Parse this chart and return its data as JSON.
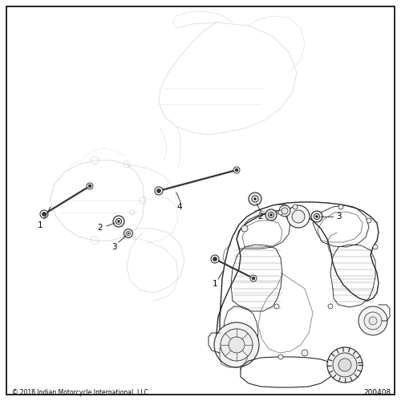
{
  "bg_color": "#ffffff",
  "border_color": "#000000",
  "border_linewidth": 1.2,
  "copyright_text": "© 2018 Indian Motorcycle International, LLC",
  "part_number": "200408",
  "copyright_fontsize": 5.5,
  "part_number_fontsize": 6.5,
  "frame_alpha": 0.35,
  "frame_color": "#888888",
  "frame_lw": 0.5,
  "stud_color": "#333333",
  "bolt_color": "#222222",
  "label_fontsize": 7.5,
  "label_color": "#000000"
}
